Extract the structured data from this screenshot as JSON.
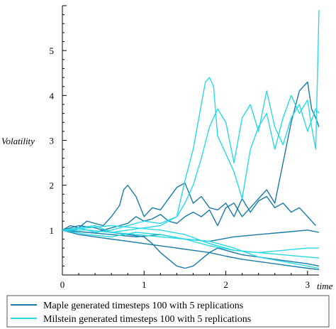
{
  "chart_data": {
    "type": "line",
    "xlabel": "time",
    "ylabel": "Volatility",
    "xlim": [
      0,
      3.14
    ],
    "ylim": [
      0,
      6
    ],
    "x_ticks": [
      0,
      1,
      2,
      3
    ],
    "y_ticks": [
      1,
      2,
      3,
      4,
      5
    ],
    "grid": false,
    "legend_position": "bottom",
    "legend": [
      {
        "label": "Maple generated timesteps 100 with 5 replications",
        "color": "#1a7aa8"
      },
      {
        "label": "Milstein generated timesteps 100 with 5 replications",
        "color": "#2ad9e8"
      }
    ],
    "series": [
      {
        "color": "#1a7aa8",
        "x": [
          0,
          0.1,
          0.2,
          0.3,
          0.4,
          0.5,
          0.6,
          0.7,
          0.75,
          0.8,
          0.9,
          1.0,
          1.1,
          1.2,
          1.3,
          1.4,
          1.5,
          1.6,
          1.7,
          1.8,
          1.9,
          2.0,
          2.1,
          2.2,
          2.3,
          2.4,
          2.5,
          2.6,
          2.7,
          2.8,
          2.9,
          3.0,
          3.1
        ],
        "y": [
          1.0,
          0.95,
          1.05,
          1.2,
          1.15,
          1.1,
          1.3,
          1.55,
          1.9,
          2.0,
          1.75,
          1.3,
          1.5,
          1.45,
          1.7,
          1.95,
          2.05,
          1.6,
          1.75,
          1.5,
          1.45,
          1.6,
          1.3,
          1.7,
          1.4,
          1.65,
          1.75,
          1.5,
          1.6,
          1.4,
          1.5,
          1.3,
          1.1
        ]
      },
      {
        "color": "#1a7aa8",
        "x": [
          0,
          0.1,
          0.2,
          0.3,
          0.4,
          0.5,
          0.6,
          0.7,
          0.8,
          0.9,
          1.0,
          1.1,
          1.2,
          1.3,
          1.4,
          1.5,
          1.6,
          1.7,
          1.8,
          1.9,
          2.0,
          2.1,
          2.2,
          2.3,
          2.4,
          2.5,
          2.6,
          2.7,
          2.8,
          2.9,
          3.0,
          3.05,
          3.1,
          3.14
        ],
        "y": [
          1.0,
          1.1,
          1.05,
          1.0,
          0.95,
          1.0,
          1.05,
          1.1,
          1.15,
          1.3,
          1.2,
          1.25,
          1.35,
          1.2,
          1.15,
          1.3,
          1.4,
          1.3,
          1.45,
          1.1,
          1.5,
          1.6,
          1.3,
          1.5,
          1.7,
          1.9,
          1.6,
          2.5,
          3.4,
          4.1,
          4.3,
          3.7,
          3.5,
          3.3
        ]
      },
      {
        "color": "#1a7aa8",
        "x": [
          0,
          0.2,
          0.4,
          0.6,
          0.8,
          1.0,
          1.2,
          1.4,
          1.6,
          1.8,
          2.0,
          2.2,
          2.4,
          2.6,
          2.8,
          3.0,
          3.14
        ],
        "y": [
          1.0,
          0.9,
          0.85,
          0.8,
          0.75,
          0.7,
          0.65,
          0.6,
          0.55,
          0.5,
          0.42,
          0.35,
          0.3,
          0.25,
          0.2,
          0.15,
          0.12
        ]
      },
      {
        "color": "#1a7aa8",
        "x": [
          0,
          0.2,
          0.4,
          0.6,
          0.8,
          1.0,
          1.1,
          1.2,
          1.3,
          1.4,
          1.5,
          1.6,
          1.7,
          1.8,
          1.9,
          2.0,
          2.2,
          2.4,
          2.6,
          2.8,
          3.0,
          3.14
        ],
        "y": [
          1.0,
          1.1,
          1.05,
          0.95,
          0.9,
          0.85,
          0.7,
          0.5,
          0.35,
          0.2,
          0.15,
          0.2,
          0.35,
          0.5,
          0.6,
          0.55,
          0.45,
          0.4,
          0.35,
          0.3,
          0.25,
          0.2
        ]
      },
      {
        "color": "#1a7aa8",
        "x": [
          0,
          0.3,
          0.6,
          0.9,
          1.2,
          1.5,
          1.8,
          2.1,
          2.4,
          2.7,
          3.0,
          3.14
        ],
        "y": [
          1.0,
          0.95,
          0.9,
          0.85,
          0.9,
          0.8,
          0.75,
          0.85,
          0.9,
          0.95,
          1.0,
          0.95
        ]
      },
      {
        "color": "#2ad9e8",
        "x": [
          0,
          0.2,
          0.4,
          0.6,
          0.8,
          1.0,
          1.2,
          1.4,
          1.5,
          1.6,
          1.7,
          1.75,
          1.8,
          1.85,
          1.9,
          2.0,
          2.1,
          2.2,
          2.3,
          2.4,
          2.5,
          2.6,
          2.7,
          2.8,
          2.9,
          3.0,
          3.05,
          3.1,
          3.14
        ],
        "y": [
          1.0,
          1.05,
          1.1,
          0.95,
          1.0,
          1.05,
          1.1,
          1.3,
          2.1,
          2.8,
          3.8,
          4.3,
          4.4,
          4.2,
          3.1,
          2.7,
          2.3,
          1.7,
          2.8,
          3.3,
          3.6,
          2.8,
          3.5,
          4.0,
          3.6,
          3.9,
          3.3,
          2.8,
          5.9
        ]
      },
      {
        "color": "#2ad9e8",
        "x": [
          0,
          0.2,
          0.4,
          0.6,
          0.8,
          1.0,
          1.2,
          1.4,
          1.5,
          1.6,
          1.7,
          1.8,
          1.9,
          2.0,
          2.1,
          2.2,
          2.3,
          2.4,
          2.5,
          2.6,
          2.7,
          2.8,
          2.9,
          3.0,
          3.1,
          3.14
        ],
        "y": [
          1.0,
          1.05,
          0.95,
          1.0,
          1.1,
          1.2,
          1.15,
          1.3,
          1.6,
          2.0,
          2.6,
          3.3,
          3.7,
          3.4,
          2.5,
          3.5,
          3.8,
          3.2,
          4.1,
          3.3,
          2.9,
          3.5,
          3.8,
          3.2,
          3.7,
          3.6
        ]
      },
      {
        "color": "#2ad9e8",
        "x": [
          0,
          0.3,
          0.6,
          0.9,
          1.2,
          1.5,
          1.8,
          2.1,
          2.4,
          2.7,
          3.0,
          3.14
        ],
        "y": [
          1.0,
          0.9,
          0.85,
          0.95,
          0.9,
          0.8,
          0.65,
          0.55,
          0.5,
          0.45,
          0.4,
          0.38
        ]
      },
      {
        "color": "#2ad9e8",
        "x": [
          0,
          0.3,
          0.6,
          0.9,
          1.2,
          1.5,
          1.8,
          2.1,
          2.4,
          2.7,
          3.0,
          3.14
        ],
        "y": [
          1.0,
          1.05,
          1.1,
          1.05,
          1.0,
          0.9,
          0.7,
          0.55,
          0.5,
          0.55,
          0.6,
          0.6
        ]
      },
      {
        "color": "#2ad9e8",
        "x": [
          0,
          0.3,
          0.6,
          0.9,
          1.2,
          1.5,
          1.8,
          2.1,
          2.4,
          2.7,
          3.0,
          3.14
        ],
        "y": [
          1.0,
          1.0,
          0.95,
          0.9,
          0.85,
          0.8,
          0.75,
          0.6,
          0.4,
          0.3,
          0.2,
          0.15
        ]
      }
    ]
  }
}
